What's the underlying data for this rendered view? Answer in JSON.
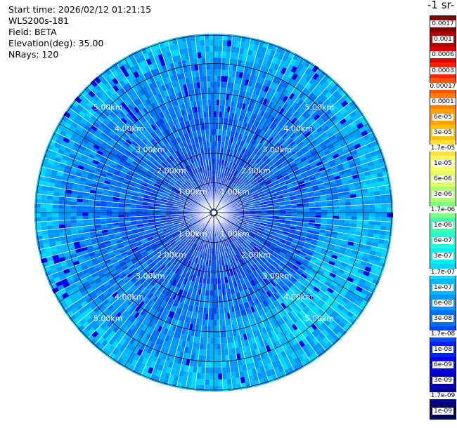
{
  "header": {
    "start_time": "Start time: 2026/02/12 01:21:15",
    "instrument": "WLS200s-181",
    "field": "Field: BETA",
    "elevation": "Elevation(deg): 35.00",
    "nrays": "NRays: 120"
  },
  "chart_data": {
    "type": "heatmap",
    "projection": "polar",
    "rings_km": [
      1,
      2,
      3,
      4,
      5
    ],
    "ring_labels": [
      "1.00km",
      "2.00km",
      "3.00km",
      "4.00km",
      "5.00km"
    ],
    "max_range_km": 5.95,
    "n_rays": 120,
    "colorbar": {
      "units_label": "-1 sr-",
      "ticks_top_to_bottom": [
        "0.0017",
        "0.001",
        "0.0006",
        "0.0003",
        "0.00017",
        "0.0001",
        "6e-05",
        "3e-05",
        "1.7e-05",
        "1e-05",
        "6e-06",
        "3e-06",
        "1.7e-06",
        "1e-06",
        "6e-07",
        "3e-07",
        "1.7e-07",
        "1e-07",
        "6e-08",
        "3e-08",
        "1.7e-08",
        "1e-08",
        "6e-09",
        "3e-09",
        "1.7e-09",
        "1e-09"
      ],
      "colors_top_to_bottom": [
        "#800000",
        "#b00000",
        "#e00000",
        "#ff2000",
        "#ff5500",
        "#ff8000",
        "#ffa000",
        "#ffc000",
        "#ffe040",
        "#ffff60",
        "#e0ff60",
        "#b0ff70",
        "#80ff80",
        "#40ffb0",
        "#20ffd8",
        "#00f0f0",
        "#00d8ff",
        "#00b8ff",
        "#0098ff",
        "#0070ff",
        "#0048ff",
        "#0020ff",
        "#0000e8",
        "#0000c0",
        "#000090",
        "#000060"
      ]
    }
  }
}
